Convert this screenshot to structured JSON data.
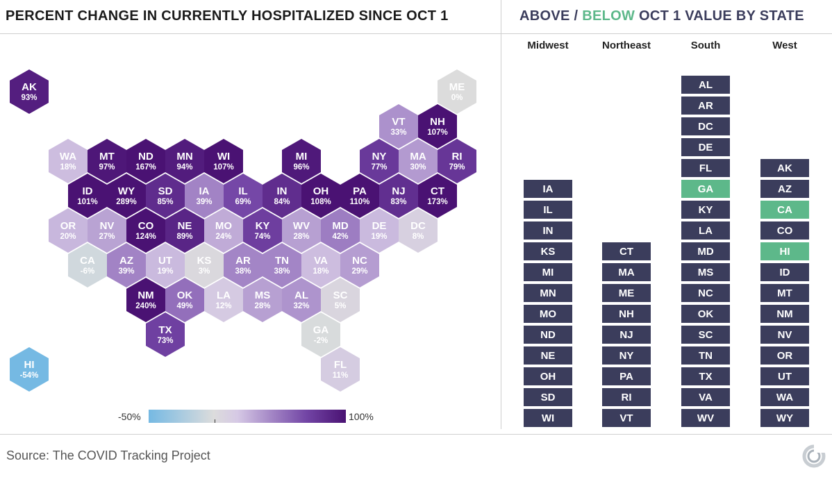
{
  "title_left": "PERCENT CHANGE IN CURRENTLY HOSPITALIZED SINCE OCT 1",
  "title_right": {
    "above": "ABOVE",
    "slash": " / ",
    "below": "BELOW",
    "rest": " OCT 1 VALUE BY STATE"
  },
  "source": "Source: The COVID Tracking Project",
  "legend": {
    "min_label": "-50%",
    "max_label": "100%",
    "min": -50,
    "max": 100
  },
  "colors": {
    "above": "#3b3d5c",
    "below": "#5db88a",
    "low": "#75b9e3",
    "mid": "#dcdcdc",
    "high": "#4a1273"
  },
  "states": [
    {
      "abbr": "AK",
      "pct": "93%",
      "value": 93
    },
    {
      "abbr": "ME",
      "pct": "0%",
      "value": 0
    },
    {
      "abbr": "VT",
      "pct": "33%",
      "value": 33
    },
    {
      "abbr": "NH",
      "pct": "107%",
      "value": 107
    },
    {
      "abbr": "WA",
      "pct": "18%",
      "value": 18
    },
    {
      "abbr": "MT",
      "pct": "97%",
      "value": 97
    },
    {
      "abbr": "ND",
      "pct": "167%",
      "value": 167
    },
    {
      "abbr": "MN",
      "pct": "94%",
      "value": 94
    },
    {
      "abbr": "WI",
      "pct": "107%",
      "value": 107
    },
    {
      "abbr": "MI",
      "pct": "96%",
      "value": 96
    },
    {
      "abbr": "NY",
      "pct": "77%",
      "value": 77
    },
    {
      "abbr": "MA",
      "pct": "30%",
      "value": 30
    },
    {
      "abbr": "RI",
      "pct": "79%",
      "value": 79
    },
    {
      "abbr": "ID",
      "pct": "101%",
      "value": 101
    },
    {
      "abbr": "WY",
      "pct": "289%",
      "value": 289
    },
    {
      "abbr": "SD",
      "pct": "85%",
      "value": 85
    },
    {
      "abbr": "IA",
      "pct": "39%",
      "value": 39
    },
    {
      "abbr": "IL",
      "pct": "69%",
      "value": 69
    },
    {
      "abbr": "IN",
      "pct": "84%",
      "value": 84
    },
    {
      "abbr": "OH",
      "pct": "108%",
      "value": 108
    },
    {
      "abbr": "PA",
      "pct": "110%",
      "value": 110
    },
    {
      "abbr": "NJ",
      "pct": "83%",
      "value": 83
    },
    {
      "abbr": "CT",
      "pct": "173%",
      "value": 173
    },
    {
      "abbr": "OR",
      "pct": "20%",
      "value": 20
    },
    {
      "abbr": "NV",
      "pct": "27%",
      "value": 27
    },
    {
      "abbr": "CO",
      "pct": "124%",
      "value": 124
    },
    {
      "abbr": "NE",
      "pct": "89%",
      "value": 89
    },
    {
      "abbr": "MO",
      "pct": "24%",
      "value": 24
    },
    {
      "abbr": "KY",
      "pct": "74%",
      "value": 74
    },
    {
      "abbr": "WV",
      "pct": "28%",
      "value": 28
    },
    {
      "abbr": "MD",
      "pct": "42%",
      "value": 42
    },
    {
      "abbr": "DE",
      "pct": "19%",
      "value": 19
    },
    {
      "abbr": "DC",
      "pct": "8%",
      "value": 8
    },
    {
      "abbr": "CA",
      "pct": "-6%",
      "value": -6
    },
    {
      "abbr": "AZ",
      "pct": "39%",
      "value": 39
    },
    {
      "abbr": "UT",
      "pct": "19%",
      "value": 19
    },
    {
      "abbr": "KS",
      "pct": "3%",
      "value": 3
    },
    {
      "abbr": "AR",
      "pct": "38%",
      "value": 38
    },
    {
      "abbr": "TN",
      "pct": "38%",
      "value": 38
    },
    {
      "abbr": "VA",
      "pct": "18%",
      "value": 18
    },
    {
      "abbr": "NC",
      "pct": "29%",
      "value": 29
    },
    {
      "abbr": "NM",
      "pct": "240%",
      "value": 240
    },
    {
      "abbr": "OK",
      "pct": "49%",
      "value": 49
    },
    {
      "abbr": "LA",
      "pct": "12%",
      "value": 12
    },
    {
      "abbr": "MS",
      "pct": "28%",
      "value": 28
    },
    {
      "abbr": "AL",
      "pct": "32%",
      "value": 32
    },
    {
      "abbr": "SC",
      "pct": "5%",
      "value": 5
    },
    {
      "abbr": "GA",
      "pct": "-2%",
      "value": -2
    },
    {
      "abbr": "TX",
      "pct": "73%",
      "value": 73
    },
    {
      "abbr": "FL",
      "pct": "11%",
      "value": 11
    },
    {
      "abbr": "HI",
      "pct": "-54%",
      "value": -54
    }
  ],
  "regions": [
    {
      "name": "Midwest",
      "states": [
        {
          "abbr": "IA",
          "status": "above"
        },
        {
          "abbr": "IL",
          "status": "above"
        },
        {
          "abbr": "IN",
          "status": "above"
        },
        {
          "abbr": "KS",
          "status": "above"
        },
        {
          "abbr": "MI",
          "status": "above"
        },
        {
          "abbr": "MN",
          "status": "above"
        },
        {
          "abbr": "MO",
          "status": "above"
        },
        {
          "abbr": "ND",
          "status": "above"
        },
        {
          "abbr": "NE",
          "status": "above"
        },
        {
          "abbr": "OH",
          "status": "above"
        },
        {
          "abbr": "SD",
          "status": "above"
        },
        {
          "abbr": "WI",
          "status": "above"
        }
      ]
    },
    {
      "name": "Northeast",
      "states": [
        {
          "abbr": "CT",
          "status": "above"
        },
        {
          "abbr": "MA",
          "status": "above"
        },
        {
          "abbr": "ME",
          "status": "above"
        },
        {
          "abbr": "NH",
          "status": "above"
        },
        {
          "abbr": "NJ",
          "status": "above"
        },
        {
          "abbr": "NY",
          "status": "above"
        },
        {
          "abbr": "PA",
          "status": "above"
        },
        {
          "abbr": "RI",
          "status": "above"
        },
        {
          "abbr": "VT",
          "status": "above"
        }
      ]
    },
    {
      "name": "South",
      "states": [
        {
          "abbr": "AL",
          "status": "above"
        },
        {
          "abbr": "AR",
          "status": "above"
        },
        {
          "abbr": "DC",
          "status": "above"
        },
        {
          "abbr": "DE",
          "status": "above"
        },
        {
          "abbr": "FL",
          "status": "above"
        },
        {
          "abbr": "GA",
          "status": "below"
        },
        {
          "abbr": "KY",
          "status": "above"
        },
        {
          "abbr": "LA",
          "status": "above"
        },
        {
          "abbr": "MD",
          "status": "above"
        },
        {
          "abbr": "MS",
          "status": "above"
        },
        {
          "abbr": "NC",
          "status": "above"
        },
        {
          "abbr": "OK",
          "status": "above"
        },
        {
          "abbr": "SC",
          "status": "above"
        },
        {
          "abbr": "TN",
          "status": "above"
        },
        {
          "abbr": "TX",
          "status": "above"
        },
        {
          "abbr": "VA",
          "status": "above"
        },
        {
          "abbr": "WV",
          "status": "above"
        }
      ]
    },
    {
      "name": "West",
      "states": [
        {
          "abbr": "AK",
          "status": "above"
        },
        {
          "abbr": "AZ",
          "status": "above"
        },
        {
          "abbr": "CA",
          "status": "below"
        },
        {
          "abbr": "CO",
          "status": "above"
        },
        {
          "abbr": "HI",
          "status": "below"
        },
        {
          "abbr": "ID",
          "status": "above"
        },
        {
          "abbr": "MT",
          "status": "above"
        },
        {
          "abbr": "NM",
          "status": "above"
        },
        {
          "abbr": "NV",
          "status": "above"
        },
        {
          "abbr": "OR",
          "status": "above"
        },
        {
          "abbr": "UT",
          "status": "above"
        },
        {
          "abbr": "WA",
          "status": "above"
        },
        {
          "abbr": "WY",
          "status": "above"
        }
      ]
    }
  ]
}
